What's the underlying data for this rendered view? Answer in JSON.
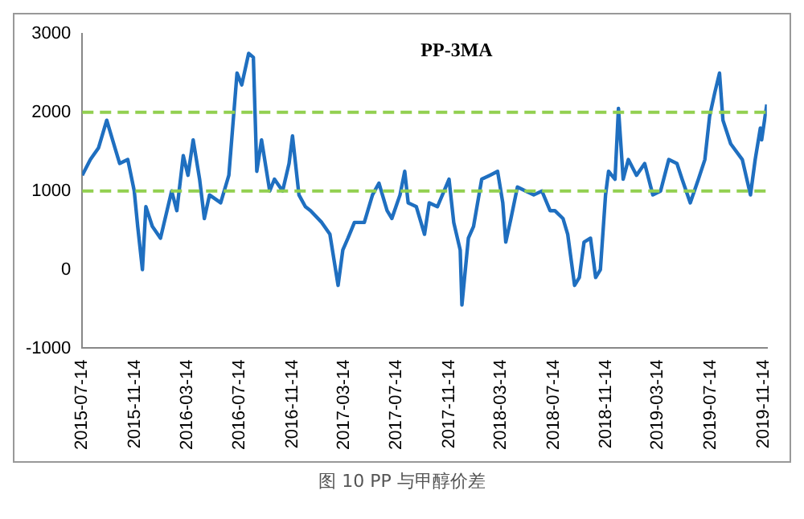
{
  "chart_data": {
    "type": "line",
    "title": "PP-3MA",
    "x": [
      "2015-07-14",
      "2015-08-02",
      "2015-08-21",
      "2015-09-09",
      "2015-09-28",
      "2015-10-09",
      "2015-10-28",
      "2015-11-12",
      "2015-11-20",
      "2015-12-01",
      "2015-12-09",
      "2015-12-24",
      "2016-01-12",
      "2016-02-07",
      "2016-02-19",
      "2016-03-05",
      "2016-03-16",
      "2016-03-28",
      "2016-04-12",
      "2016-04-23",
      "2016-05-05",
      "2016-05-31",
      "2016-06-19",
      "2016-07-08",
      "2016-07-19",
      "2016-08-04",
      "2016-08-15",
      "2016-08-23",
      "2016-09-03",
      "2016-09-22",
      "2016-10-03",
      "2016-10-22",
      "2016-11-06",
      "2016-11-14",
      "2016-11-29",
      "2016-12-14",
      "2016-12-26",
      "2017-01-21",
      "2017-02-09",
      "2017-02-28",
      "2017-03-11",
      "2017-03-23",
      "2017-04-07",
      "2017-04-30",
      "2017-05-19",
      "2017-06-03",
      "2017-06-22",
      "2017-07-03",
      "2017-07-22",
      "2017-08-02",
      "2017-08-10",
      "2017-08-29",
      "2017-09-17",
      "2017-09-28",
      "2017-10-17",
      "2017-11-13",
      "2017-11-24",
      "2017-12-09",
      "2017-12-13",
      "2017-12-28",
      "2018-01-09",
      "2018-01-28",
      "2018-02-16",
      "2018-03-06",
      "2018-03-18",
      "2018-03-25",
      "2018-04-06",
      "2018-04-21",
      "2018-05-10",
      "2018-05-29",
      "2018-06-17",
      "2018-07-06",
      "2018-07-17",
      "2018-08-05",
      "2018-08-16",
      "2018-09-01",
      "2018-09-12",
      "2018-09-23",
      "2018-10-08",
      "2018-10-20",
      "2018-10-31",
      "2018-11-12",
      "2018-11-19",
      "2018-12-04",
      "2018-12-12",
      "2018-12-23",
      "2019-01-04",
      "2019-01-23",
      "2019-02-11",
      "2019-03-02",
      "2019-03-20",
      "2019-04-08",
      "2019-04-27",
      "2019-05-09",
      "2019-05-28",
      "2019-06-16",
      "2019-07-01",
      "2019-07-12",
      "2019-07-24",
      "2019-08-04",
      "2019-08-12",
      "2019-08-30",
      "2019-09-26",
      "2019-10-15",
      "2019-10-26",
      "2019-11-07",
      "2019-11-10",
      "2019-11-22"
    ],
    "series": [
      {
        "color": "#1f6fc0",
        "values": [
          1200,
          1400,
          1550,
          1900,
          1550,
          1350,
          1400,
          1000,
          550,
          0,
          800,
          550,
          400,
          1000,
          750,
          1450,
          1200,
          1650,
          1150,
          650,
          950,
          850,
          1200,
          2500,
          2350,
          2750,
          2700,
          1250,
          1650,
          1000,
          1150,
          1000,
          1350,
          1700,
          950,
          800,
          750,
          600,
          450,
          -200,
          250,
          400,
          600,
          600,
          950,
          1100,
          750,
          650,
          950,
          1250,
          850,
          800,
          450,
          850,
          800,
          1150,
          600,
          250,
          -450,
          400,
          550,
          1150,
          1200,
          1250,
          850,
          350,
          650,
          1050,
          1000,
          950,
          1000,
          750,
          750,
          650,
          450,
          -200,
          -100,
          350,
          400,
          -100,
          0,
          950,
          1250,
          1150,
          2050,
          1150,
          1400,
          1200,
          1350,
          950,
          1000,
          1400,
          1350,
          1150,
          850,
          1150,
          1400,
          1950,
          2250,
          2500,
          1900,
          1600,
          1400,
          950,
          1400,
          1800,
          1650,
          2100
        ]
      }
    ],
    "xlim": [
      "2015-07-14",
      "2019-11-22"
    ],
    "xticks": [
      "2015-07-14",
      "2015-11-14",
      "2016-03-14",
      "2016-07-14",
      "2016-11-14",
      "2017-03-14",
      "2017-07-14",
      "2017-11-14",
      "2018-03-14",
      "2018-07-14",
      "2018-11-14",
      "2019-03-14",
      "2019-07-14",
      "2019-11-14"
    ],
    "ylim": [
      -1000,
      3000
    ],
    "yticks": [
      -1000,
      0,
      1000,
      2000,
      3000
    ],
    "ref_lines": [
      {
        "axis": "y",
        "value": 2000,
        "color": "#92d050",
        "line_style": "dashed"
      },
      {
        "axis": "y",
        "value": 1000,
        "color": "#92d050",
        "line_style": "dashed"
      }
    ],
    "annotations": [
      "图 10 PP 与甲醇价差"
    ],
    "grid": false,
    "legend": false,
    "marker": "none",
    "line_style": "solid"
  }
}
